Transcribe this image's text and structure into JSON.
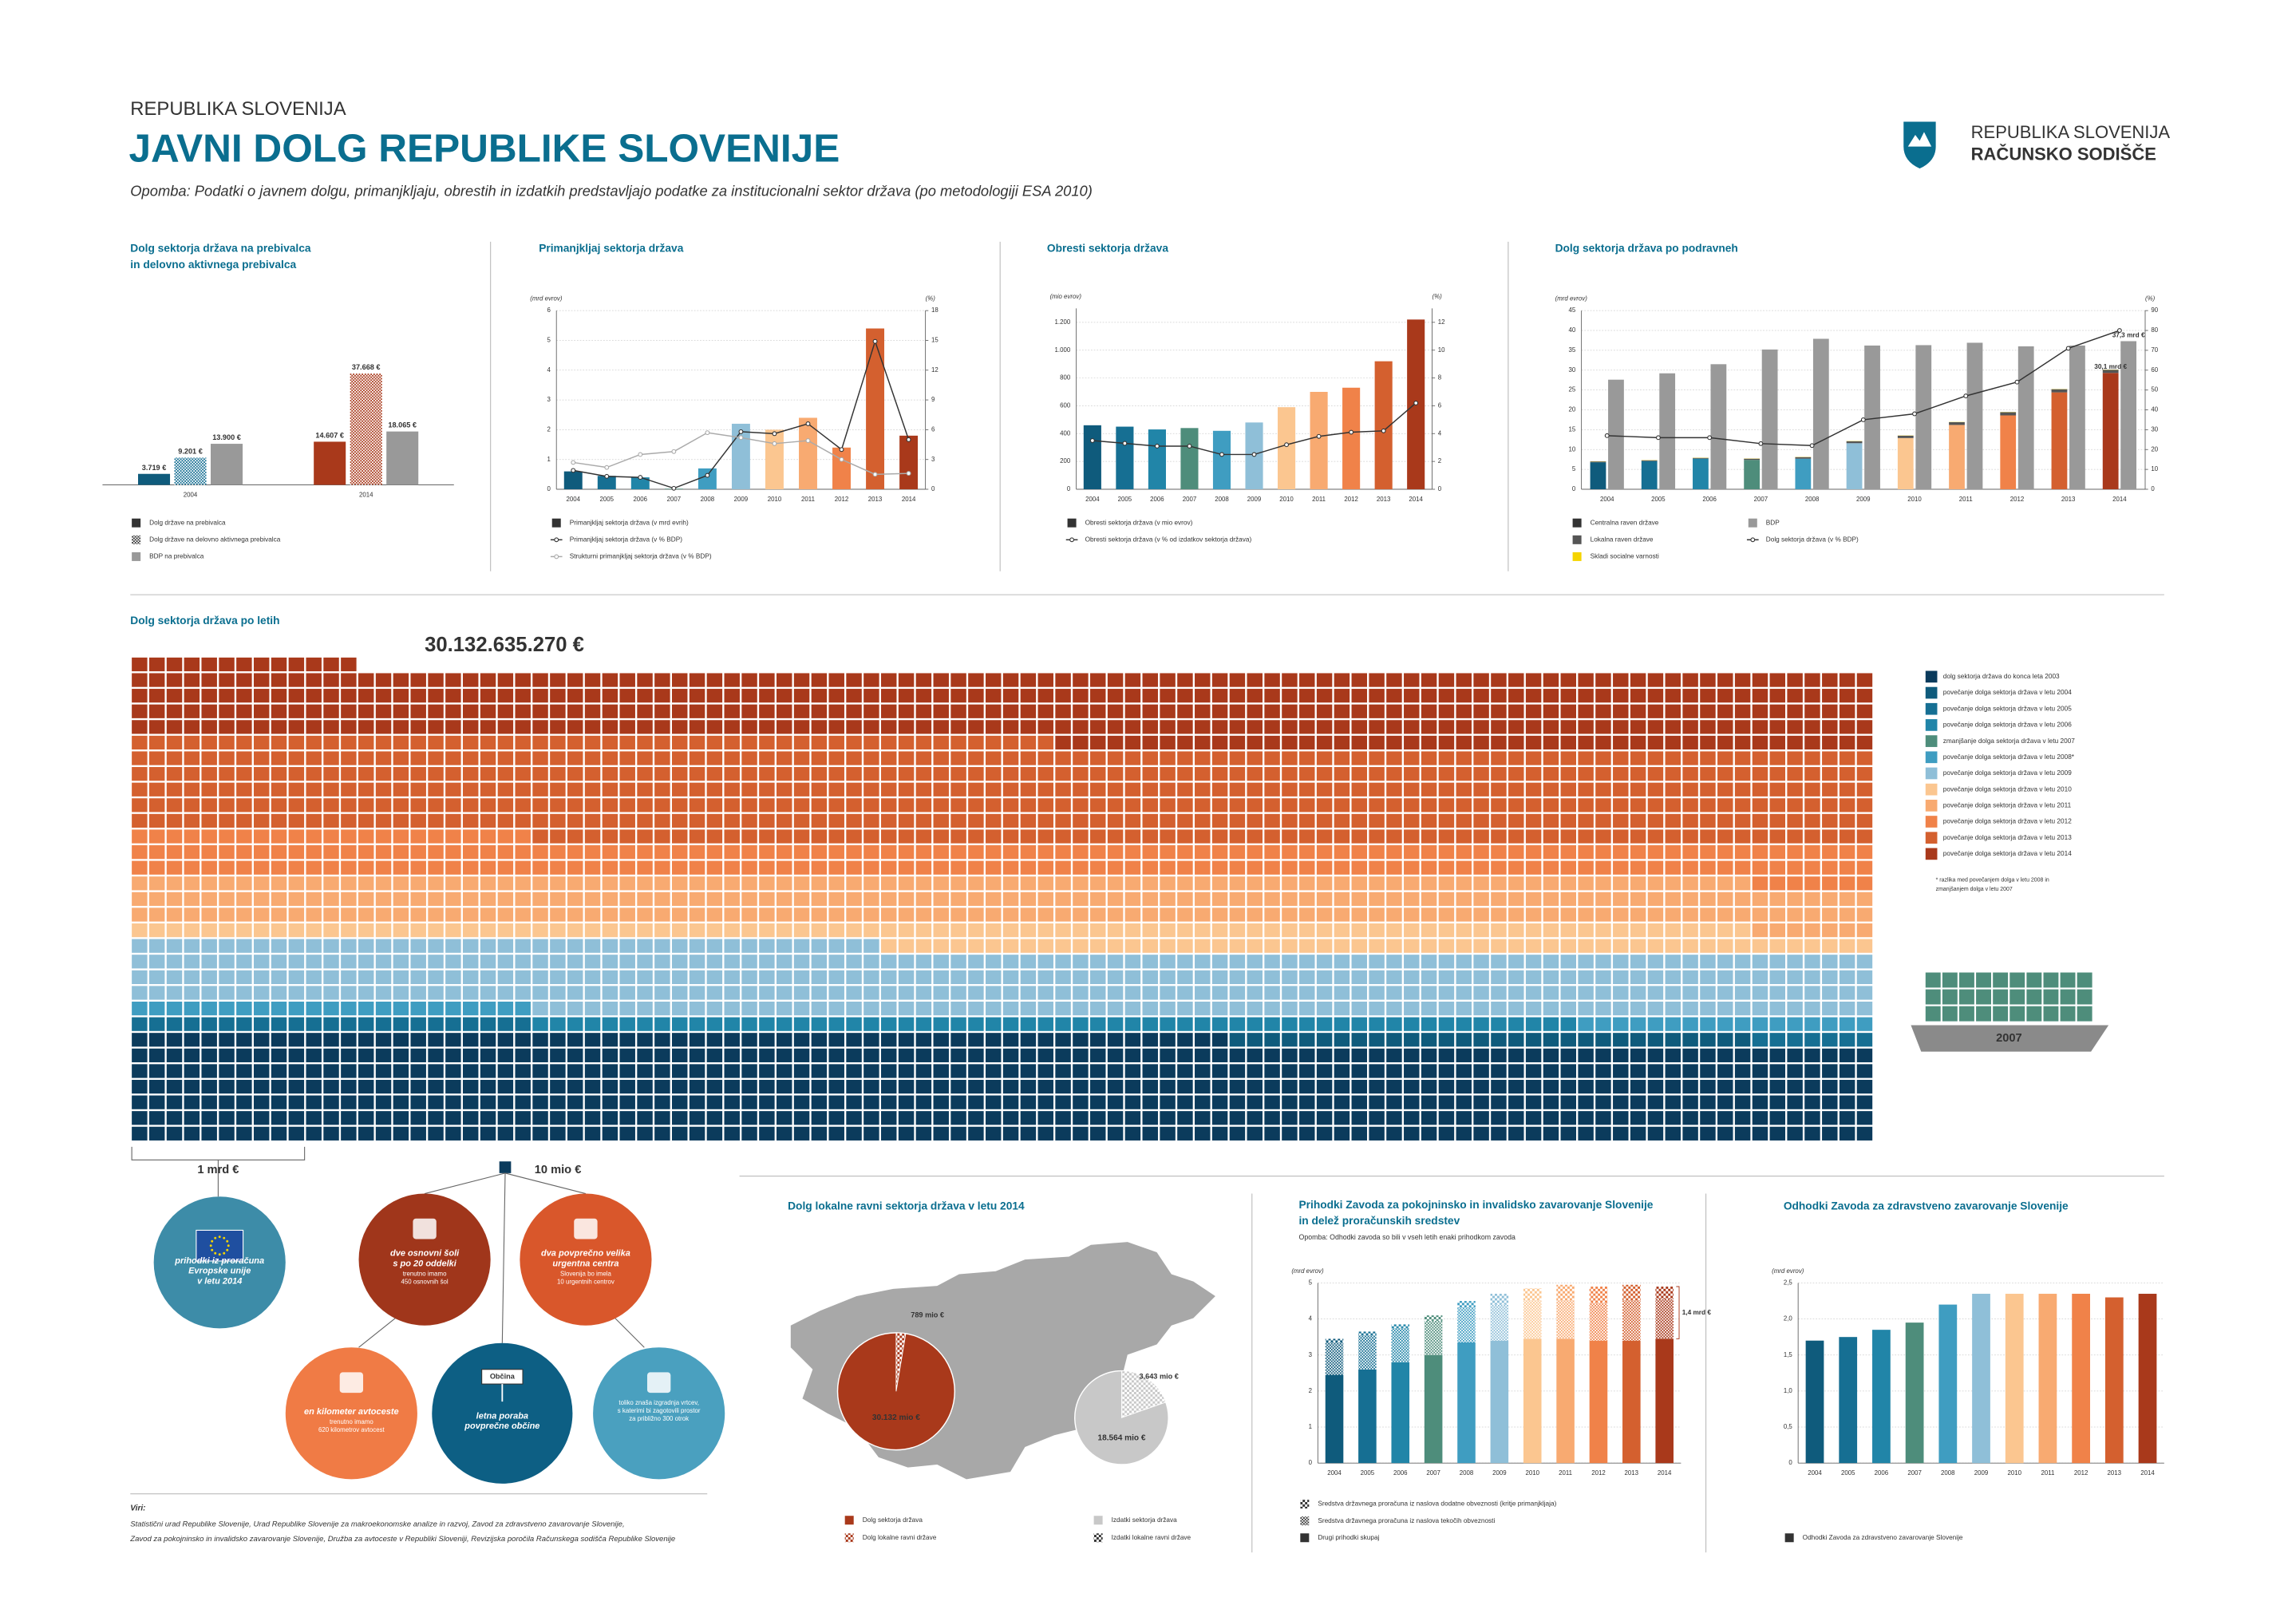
{
  "header": {
    "country": "REPUBLIKA SLOVENIJA",
    "title": "JAVNI DOLG REPUBLIKE SLOVENIJE",
    "note": "Opomba: Podatki o javnem dolgu, primanjkljaju, obrestih in izdatkih predstavljajo podatke za institucionalni sektor država (po metodologiji ESA 2010)"
  },
  "logo": {
    "line1": "REPUBLIKA SLOVENIJA",
    "line2": "RAČUNSKO SODIŠČE"
  },
  "chart_data": [
    {
      "type": "bar",
      "title": [
        "Dolg sektorja država na prebivalca",
        "in delovno aktivnega prebivalca"
      ],
      "categories": [
        "2004",
        "2014"
      ],
      "series": [
        {
          "name": "Dolg države na prebivalca",
          "colors": [
            "#0f5b7c",
            "#a9391b"
          ],
          "legend_color": "#333333",
          "values": [
            3719,
            14607
          ],
          "value_labels": [
            "3.719 €",
            "14.607 €"
          ]
        },
        {
          "name": "Dolg države na delovno aktivnega prebivalca",
          "colors": [
            "#166f93",
            "#a9391b"
          ],
          "hatch": true,
          "legend_color": "#333333",
          "values": [
            9201,
            37668
          ],
          "value_labels": [
            "9.201 €",
            "37.668 €"
          ]
        },
        {
          "name": "BDP na prebivalca",
          "color": "#999999",
          "values": [
            13900,
            18065
          ],
          "value_labels": [
            "13.900 €",
            "18.065 €"
          ]
        }
      ]
    },
    {
      "type": "bar",
      "title": "Primanjkljaj sektorja država",
      "y_unit": "(mrd evrov)",
      "y2_unit": "(%)",
      "grid": true,
      "categories": [
        "2004",
        "2005",
        "2006",
        "2007",
        "2008",
        "2009",
        "2010",
        "2011",
        "2012",
        "2013",
        "2014"
      ],
      "ylim": [
        0,
        6
      ],
      "yticks": [
        0,
        1,
        2,
        3,
        4,
        5,
        6
      ],
      "y2lim": [
        0,
        18
      ],
      "y2ticks": [
        0,
        3,
        6,
        9,
        12,
        15,
        18
      ],
      "series": [
        {
          "name": "Primanjkljaj sektorja država (v mrd evrih)",
          "colors": [
            "#0f5b7c",
            "#166f93",
            "#2185a8",
            "#4e8d7b",
            "#3f9dc1",
            "#8fbfd8",
            "#fbc690",
            "#f8aa71",
            "#f08249",
            "#d4602f",
            "#a9391b"
          ],
          "legend_color": "#333333",
          "values": [
            0.6,
            0.45,
            0.4,
            0.02,
            0.7,
            2.2,
            2.0,
            2.4,
            1.4,
            5.4,
            1.8
          ]
        },
        {
          "name": "Primanjkljaj sektorja država (v % BDP)",
          "type": "line",
          "axis": "y2",
          "color": "#333333",
          "values": [
            1.9,
            1.3,
            1.2,
            0.1,
            1.4,
            5.8,
            5.6,
            6.6,
            4.0,
            14.9,
            5.0
          ]
        },
        {
          "name": "Strukturni primanjkljaj sektorja država (v % BDP)",
          "type": "line",
          "axis": "y2",
          "color": "#aaaaaa",
          "values": [
            2.7,
            2.2,
            3.5,
            3.8,
            5.7,
            5.2,
            4.6,
            4.9,
            3.0,
            1.5,
            1.6
          ]
        }
      ]
    },
    {
      "type": "bar",
      "title": "Obresti sektorja država",
      "y_unit": "(mio evrov)",
      "y2_unit": "(%)",
      "grid": true,
      "categories": [
        "2004",
        "2005",
        "2006",
        "2007",
        "2008",
        "2009",
        "2010",
        "2011",
        "2012",
        "2013",
        "2014"
      ],
      "ylim": [
        0,
        1300
      ],
      "yticks": [
        0,
        200,
        400,
        600,
        800,
        {
          "value": 1000,
          "label": "1.000"
        },
        {
          "value": 1200,
          "label": "1.200"
        }
      ],
      "y2lim": [
        0,
        13
      ],
      "y2ticks": [
        0,
        2,
        4,
        6,
        8,
        10,
        12
      ],
      "series": [
        {
          "name": "Obresti sektorja država (v mio evrov)",
          "colors": [
            "#0f5b7c",
            "#166f93",
            "#2185a8",
            "#4e8d7b",
            "#3f9dc1",
            "#8fbfd8",
            "#fbc690",
            "#f8aa71",
            "#f08249",
            "#d4602f",
            "#a9391b"
          ],
          "legend_color": "#333333",
          "values": [
            460,
            450,
            430,
            440,
            420,
            480,
            590,
            700,
            730,
            920,
            1220
          ]
        },
        {
          "name": "Obresti sektorja država (v % od izdatkov sektorja država)",
          "type": "line",
          "axis": "y2",
          "color": "#333333",
          "values": [
            3.5,
            3.3,
            3.1,
            3.1,
            2.5,
            2.5,
            3.2,
            3.8,
            4.1,
            4.2,
            6.2
          ]
        }
      ]
    },
    {
      "type": "bar",
      "title": "Dolg sektorja država po podravneh",
      "y_unit": "(mrd evrov)",
      "y2_unit": "(%)",
      "grid": true,
      "categories": [
        "2004",
        "2005",
        "2006",
        "2007",
        "2008",
        "2009",
        "2010",
        "2011",
        "2012",
        "2013",
        "2014"
      ],
      "ylim": [
        0,
        45
      ],
      "yticks": [
        0,
        5,
        10,
        15,
        20,
        25,
        30,
        35,
        40,
        45
      ],
      "y2lim": [
        0,
        90
      ],
      "y2ticks": [
        0,
        10,
        20,
        30,
        40,
        50,
        60,
        70,
        80,
        90
      ],
      "series": [
        {
          "name": "Centralna raven države",
          "stack": true,
          "colors": [
            "#0f5b7c",
            "#166f93",
            "#2185a8",
            "#4e8d7b",
            "#3f9dc1",
            "#8fbfd8",
            "#fbc690",
            "#f8aa71",
            "#f08249",
            "#d4602f",
            "#a9391b"
          ],
          "legend_color": "#333333",
          "values": [
            6.8,
            7.1,
            7.7,
            7.4,
            7.7,
            11.6,
            12.9,
            16.2,
            18.6,
            24.4,
            29.3
          ]
        },
        {
          "name": "Lokalna raven države",
          "stack": true,
          "color": "#555555",
          "values": [
            0.2,
            0.2,
            0.2,
            0.3,
            0.4,
            0.5,
            0.6,
            0.7,
            0.8,
            0.8,
            0.8
          ]
        },
        {
          "name": "Skladi socialne varnosti",
          "stack": true,
          "color": "#f5d400",
          "values": [
            0.05,
            0.05,
            0.05,
            0.05,
            0.05,
            0.05,
            0.05,
            0.05,
            0.05,
            0.05,
            0.05
          ]
        },
        {
          "name": "BDP",
          "color": "#999999",
          "values": [
            27.6,
            29.2,
            31.5,
            35.2,
            37.9,
            36.2,
            36.3,
            36.9,
            36.0,
            36.2,
            37.3
          ]
        },
        {
          "name": "Dolg sektorja država (v % BDP)",
          "type": "line",
          "axis": "y2",
          "color": "#333333",
          "values": [
            27,
            26,
            26,
            23,
            22,
            35,
            38,
            47,
            54,
            71,
            80
          ]
        }
      ],
      "annotations": [
        "37,3 mrd €",
        "30,1 mrd €"
      ]
    },
    {
      "type": "waffle",
      "title": "Dolg sektorja država po letih",
      "total_label": "30.132.635.270 €",
      "categories": [
        "dolg sektorja država do konca leta 2003",
        "povečanje dolga sektorja država v letu 2004",
        "povečanje dolga sektorja država v letu 2005",
        "povečanje dolga sektorja država v letu 2006",
        "zmanjšanje dolga sektorja država v letu 2007",
        "povečanje dolga sektorja država v letu 2008*",
        "povečanje dolga sektorja država v letu 2009",
        "povečanje dolga sektorja država v letu 2010",
        "povečanje dolga sektorja država v letu 2011",
        "povečanje dolga sektorja država v letu 2012",
        "povečanje dolga sektorja država v letu 2013",
        "povečanje dolga sektorja država v letu 2014"
      ],
      "values": [
        6.63,
        0.3,
        0.3,
        0.6,
        -0.3,
        0.4,
        4.2,
        1.5,
        3.0,
        2.3,
        6.3,
        4.6
      ],
      "colors": [
        "#0b3b5c",
        "#0f5b7c",
        "#166f93",
        "#2185a8",
        "#4e8d7b",
        "#3f9dc1",
        "#8fbfd8",
        "#fbc690",
        "#f8aa71",
        "#f08249",
        "#d4602f",
        "#a9391b"
      ],
      "note": [
        "* razlika med povečanjem dolga v letu 2008 in",
        "zmanjšanjem dolga v letu 2007"
      ],
      "ship_label": "2007"
    },
    {
      "type": "pie",
      "title": "Dolg lokalne ravni sektorja država  v letu 2014",
      "pies": [
        {
          "total_name": "Dolg sektorja država",
          "part_name": "Dolg lokalne ravni države",
          "total": 30132,
          "total_label": "30.132 mio €",
          "part": 789,
          "part_label": "789 mio €",
          "color": "#a9391b"
        },
        {
          "total_name": "Izdatki sektorja država",
          "part_name": "Izdatki lokalne ravni države",
          "total": 18564,
          "total_label": "18.564 mio €",
          "part": 3643,
          "part_label": "3.643 mio €",
          "color": "#c8c8c8"
        }
      ]
    },
    {
      "type": "bar",
      "title": [
        "Prihodki Zavoda za pokojninsko in invalidsko zavarovanje Slovenije",
        "in delež proračunskih sredstev"
      ],
      "subtitle": "Opomba: Odhodki zavoda so bili v vseh letih enaki prihodkom zavoda",
      "y_unit": "(mrd evrov)",
      "grid": true,
      "categories": [
        "2004",
        "2005",
        "2006",
        "2007",
        "2008",
        "2009",
        "2010",
        "2011",
        "2012",
        "2013",
        "2014"
      ],
      "ylim": [
        0,
        5
      ],
      "yticks": [
        0,
        1,
        2,
        3,
        4,
        5
      ],
      "series": [
        {
          "name": "Drugi prihodki skupaj",
          "stack": true,
          "colors": [
            "#0f5b7c",
            "#166f93",
            "#2185a8",
            "#4e8d7b",
            "#3f9dc1",
            "#8fbfd8",
            "#fbc690",
            "#f8aa71",
            "#f08249",
            "#d4602f",
            "#a9391b"
          ],
          "legend_color": "#333333",
          "values": [
            2.45,
            2.6,
            2.8,
            3.0,
            3.35,
            3.4,
            3.45,
            3.45,
            3.4,
            3.4,
            3.45
          ]
        },
        {
          "name": "Sredstva državnega proračuna iz naslova tekočih obveznosti",
          "stack": true,
          "hatch": "fine",
          "colors": [
            "#0f5b7c",
            "#166f93",
            "#2185a8",
            "#4e8d7b",
            "#3f9dc1",
            "#8fbfd8",
            "#fbc690",
            "#f8aa71",
            "#f08249",
            "#d4602f",
            "#a9391b"
          ],
          "legend_color": "#333333",
          "values": [
            0.9,
            0.95,
            0.95,
            0.95,
            0.95,
            1.0,
            1.05,
            1.05,
            1.05,
            1.1,
            1.1
          ]
        },
        {
          "name": "Sredstva državnega proračuna iz naslova dodatne obveznosti (kritje primanjkljaja)",
          "stack": true,
          "hatch": "coarse",
          "colors": [
            "#0f5b7c",
            "#166f93",
            "#2185a8",
            "#4e8d7b",
            "#3f9dc1",
            "#8fbfd8",
            "#fbc690",
            "#f8aa71",
            "#f08249",
            "#d4602f",
            "#a9391b"
          ],
          "legend_color": "#333333",
          "values": [
            0.1,
            0.1,
            0.1,
            0.15,
            0.2,
            0.3,
            0.35,
            0.45,
            0.45,
            0.45,
            0.35
          ]
        }
      ],
      "annotations": [
        "1,4 mrd €"
      ]
    },
    {
      "type": "bar",
      "title": "Odhodki Zavoda za zdravstveno zavarovanje Slovenije",
      "y_unit": "(mrd evrov)",
      "grid": true,
      "categories": [
        "2004",
        "2005",
        "2006",
        "2007",
        "2008",
        "2009",
        "2010",
        "2011",
        "2012",
        "2013",
        "2014"
      ],
      "ylim": [
        0,
        2.5
      ],
      "yticks": [
        0,
        {
          "value": 0.5,
          "label": "0,5"
        },
        {
          "value": 1,
          "label": "1,0"
        },
        {
          "value": 1.5,
          "label": "1,5"
        },
        {
          "value": 2,
          "label": "2,0"
        },
        {
          "value": 2.5,
          "label": "2,5"
        }
      ],
      "series": [
        {
          "name": "Odhodki Zavoda za zdravstveno zavarovanje Slovenije",
          "colors": [
            "#0f5b7c",
            "#166f93",
            "#2185a8",
            "#4e8d7b",
            "#3f9dc1",
            "#8fbfd8",
            "#fbc690",
            "#f8aa71",
            "#f08249",
            "#d4602f",
            "#a9391b"
          ],
          "legend_color": "#333333",
          "values": [
            1.7,
            1.75,
            1.85,
            1.95,
            2.2,
            2.35,
            2.35,
            2.35,
            2.35,
            2.3,
            2.35
          ]
        }
      ]
    }
  ],
  "comparisons": {
    "block_label": "1 mrd €",
    "unit_label": "10 mio €",
    "items": [
      {
        "title": [
          "prihodki iz proračuna",
          "Evropske unije",
          "v letu 2014"
        ],
        "color": "#3d8ca8"
      },
      {
        "title": [
          "dve osnovni šoli",
          "s po 20 oddelki"
        ],
        "detail": [
          "trenutno imamo",
          "450 osnovnih šol"
        ],
        "color": "#a0361b"
      },
      {
        "title": [
          "dva povprečno velika",
          "urgentna centra"
        ],
        "detail": [
          "Slovenija bo imela",
          "10 urgentnih centrov"
        ],
        "color": "#d9572b"
      },
      {
        "title": [
          "en kilometer avtoceste"
        ],
        "detail": [
          "trenutno imamo",
          "620 kilometrov avtocest"
        ],
        "color": "#f07b45"
      },
      {
        "title": [
          "letna poraba",
          "povprečne občine"
        ],
        "sign": "Občina",
        "color": "#0d5f84"
      },
      {
        "detail": [
          "toliko znaša izgradnja vrtcev,",
          "s katerimi bi zagotovili prostor",
          "za približno 300 otrok"
        ],
        "color": "#4aa0bf"
      }
    ]
  },
  "sources": {
    "label": "Viri:",
    "lines": [
      "Statistični urad Republike Slovenije, Urad Republike Slovenije za makroekonomske analize in razvoj, Zavod za zdravstveno zavarovanje Slovenije,",
      "Zavod za pokojninsko in invalidsko zavarovanje Slovenije, Družba za avtoceste v Republiki Sloveniji, Revizijska poročila Računskega sodišča Republike Slovenije"
    ]
  }
}
